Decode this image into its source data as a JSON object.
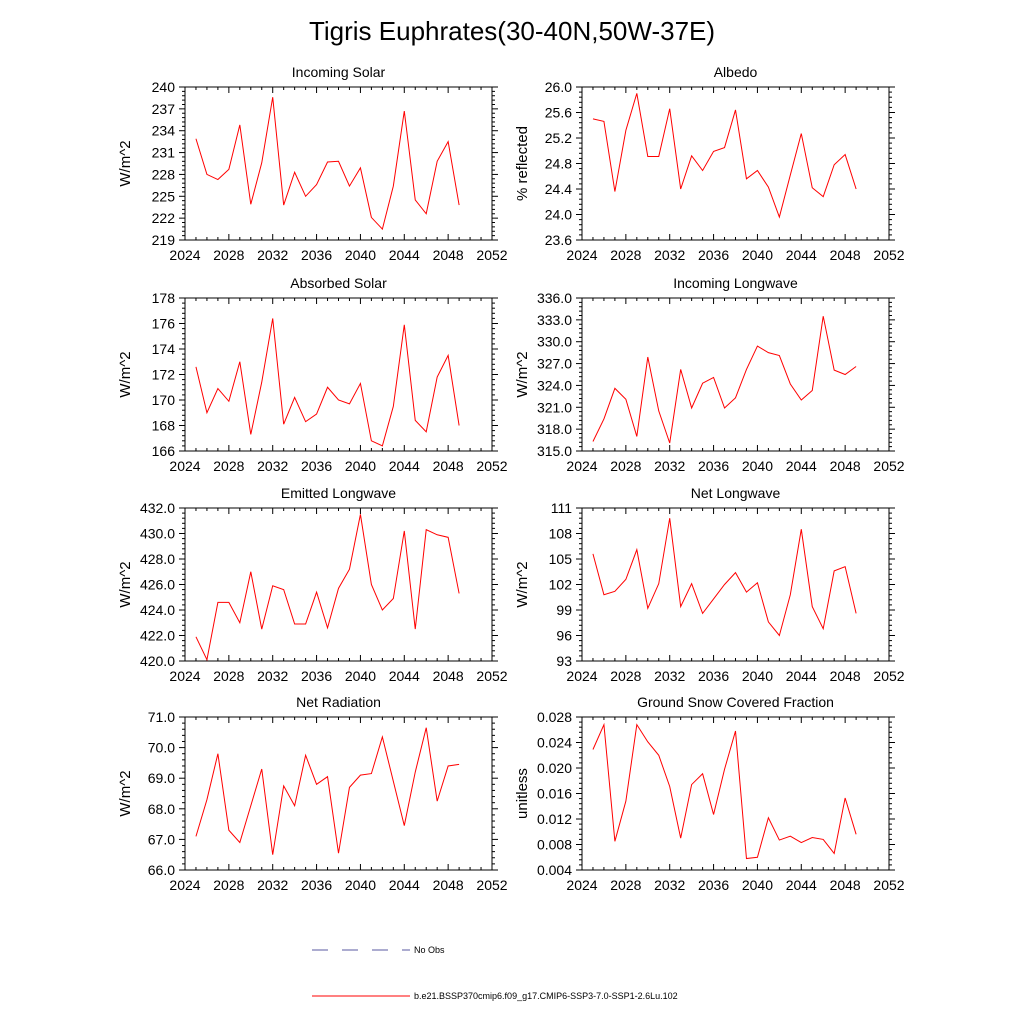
{
  "title": "Tigris Euphrates(30-40N,50W-37E)",
  "colors": {
    "series": "#ff0000",
    "obs": "#5a5aa0",
    "axis": "#000000"
  },
  "legend": {
    "obs_label": "No Obs",
    "model_label": "b.e21.BSSP370cmip6.f09_g17.CMIP6-SSP3-7.0-SSP1-2.6Lu.102"
  },
  "chart_data": [
    {
      "type": "line",
      "title": "Incoming Solar",
      "ylabel": "W/m^2",
      "xlim": [
        2024,
        2052
      ],
      "ylim": [
        219,
        240
      ],
      "xticks": [
        "2024",
        "2028",
        "2032",
        "2036",
        "2040",
        "2044",
        "2048",
        "2052"
      ],
      "yticks": [
        "219",
        "222",
        "225",
        "228",
        "231",
        "234",
        "237",
        "240"
      ],
      "x": [
        2025,
        2026,
        2027,
        2028,
        2029,
        2030,
        2031,
        2032,
        2033,
        2034,
        2035,
        2036,
        2037,
        2038,
        2039,
        2040,
        2041,
        2042,
        2043,
        2044,
        2045,
        2046,
        2047,
        2048,
        2049
      ],
      "series": [
        {
          "values": [
            232.9,
            228.0,
            227.3,
            228.7,
            234.8,
            223.9,
            229.6,
            238.6,
            223.8,
            228.3,
            225.0,
            226.6,
            229.7,
            229.8,
            226.4,
            228.9,
            222.1,
            220.5,
            226.4,
            236.7,
            224.5,
            222.6,
            229.8,
            232.5,
            223.8
          ]
        }
      ]
    },
    {
      "type": "line",
      "title": "Albedo",
      "ylabel": "% reflected",
      "xlim": [
        2024,
        2052
      ],
      "ylim": [
        23.6,
        26.0
      ],
      "xticks": [
        "2024",
        "2028",
        "2032",
        "2036",
        "2040",
        "2044",
        "2048",
        "2052"
      ],
      "yticks": [
        "23.6",
        "24.0",
        "24.4",
        "24.8",
        "25.2",
        "25.6",
        "26.0"
      ],
      "x": [
        2025,
        2026,
        2027,
        2028,
        2029,
        2030,
        2031,
        2032,
        2033,
        2034,
        2035,
        2036,
        2037,
        2038,
        2039,
        2040,
        2041,
        2042,
        2043,
        2044,
        2045,
        2046,
        2047,
        2048,
        2049
      ],
      "series": [
        {
          "values": [
            25.5,
            25.46,
            24.36,
            25.32,
            25.9,
            24.91,
            24.91,
            25.66,
            24.4,
            24.92,
            24.69,
            24.99,
            25.05,
            25.64,
            24.56,
            24.69,
            24.43,
            23.96,
            24.62,
            25.27,
            24.42,
            24.28,
            24.78,
            24.94,
            24.4
          ]
        }
      ]
    },
    {
      "type": "line",
      "title": "Absorbed Solar",
      "ylabel": "W/m^2",
      "xlim": [
        2024,
        2052
      ],
      "ylim": [
        166,
        178
      ],
      "xticks": [
        "2024",
        "2028",
        "2032",
        "2036",
        "2040",
        "2044",
        "2048",
        "2052"
      ],
      "yticks": [
        "166",
        "168",
        "170",
        "172",
        "174",
        "176",
        "178"
      ],
      "x": [
        2025,
        2026,
        2027,
        2028,
        2029,
        2030,
        2031,
        2032,
        2033,
        2034,
        2035,
        2036,
        2037,
        2038,
        2039,
        2040,
        2041,
        2042,
        2043,
        2044,
        2045,
        2046,
        2047,
        2048,
        2049
      ],
      "series": [
        {
          "values": [
            172.6,
            169.0,
            170.9,
            169.9,
            173.0,
            167.3,
            171.4,
            176.4,
            168.1,
            170.2,
            168.3,
            168.9,
            171.0,
            170.0,
            169.7,
            171.3,
            166.8,
            166.4,
            169.5,
            175.9,
            168.4,
            167.5,
            171.8,
            173.5,
            168.0
          ]
        }
      ]
    },
    {
      "type": "line",
      "title": "Incoming Longwave",
      "ylabel": "W/m^2",
      "xlim": [
        2024,
        2052
      ],
      "ylim": [
        315.0,
        336.0
      ],
      "xticks": [
        "2024",
        "2028",
        "2032",
        "2036",
        "2040",
        "2044",
        "2048",
        "2052"
      ],
      "yticks": [
        "315.0",
        "318.0",
        "321.0",
        "324.0",
        "327.0",
        "330.0",
        "333.0",
        "336.0"
      ],
      "x": [
        2025,
        2026,
        2027,
        2028,
        2029,
        2030,
        2031,
        2032,
        2033,
        2034,
        2035,
        2036,
        2037,
        2038,
        2039,
        2040,
        2041,
        2042,
        2043,
        2044,
        2045,
        2046,
        2047,
        2048,
        2049
      ],
      "series": [
        {
          "values": [
            316.3,
            319.4,
            323.6,
            322.1,
            317.0,
            327.9,
            320.5,
            316.1,
            326.2,
            320.9,
            324.3,
            325.1,
            320.9,
            322.3,
            326.2,
            329.4,
            328.5,
            328.1,
            324.2,
            322.0,
            323.3,
            333.5,
            326.1,
            325.5,
            326.6
          ]
        }
      ]
    },
    {
      "type": "line",
      "title": "Emitted Longwave",
      "ylabel": "W/m^2",
      "xlim": [
        2024,
        2052
      ],
      "ylim": [
        420.0,
        432.0
      ],
      "xticks": [
        "2024",
        "2028",
        "2032",
        "2036",
        "2040",
        "2044",
        "2048",
        "2052"
      ],
      "yticks": [
        "420.0",
        "422.0",
        "424.0",
        "426.0",
        "428.0",
        "430.0",
        "432.0"
      ],
      "x": [
        2025,
        2026,
        2027,
        2028,
        2029,
        2030,
        2031,
        2032,
        2033,
        2034,
        2035,
        2036,
        2037,
        2038,
        2039,
        2040,
        2041,
        2042,
        2043,
        2044,
        2045,
        2046,
        2047,
        2048,
        2049
      ],
      "series": [
        {
          "values": [
            421.9,
            420.1,
            424.6,
            424.6,
            423.0,
            427.0,
            422.5,
            425.9,
            425.6,
            422.9,
            422.9,
            425.4,
            422.6,
            425.7,
            427.2,
            431.5,
            426.0,
            424.0,
            424.9,
            430.2,
            422.5,
            430.3,
            429.9,
            429.7,
            425.3
          ]
        }
      ]
    },
    {
      "type": "line",
      "title": "Net Longwave",
      "ylabel": "W/m^2",
      "xlim": [
        2024,
        2052
      ],
      "ylim": [
        93,
        111
      ],
      "xticks": [
        "2024",
        "2028",
        "2032",
        "2036",
        "2040",
        "2044",
        "2048",
        "2052"
      ],
      "yticks": [
        "93",
        "96",
        "99",
        "102",
        "105",
        "108",
        "111"
      ],
      "x": [
        2025,
        2026,
        2027,
        2028,
        2029,
        2030,
        2031,
        2032,
        2033,
        2034,
        2035,
        2036,
        2037,
        2038,
        2039,
        2040,
        2041,
        2042,
        2043,
        2044,
        2045,
        2046,
        2047,
        2048,
        2049
      ],
      "series": [
        {
          "values": [
            105.6,
            100.8,
            101.2,
            102.6,
            106.1,
            99.2,
            102.1,
            109.8,
            99.4,
            102.1,
            98.6,
            100.3,
            102.0,
            103.4,
            101.1,
            102.2,
            97.6,
            96.0,
            100.8,
            108.5,
            99.4,
            96.8,
            103.6,
            104.1,
            98.6
          ]
        }
      ]
    },
    {
      "type": "line",
      "title": "Net Radiation",
      "ylabel": "W/m^2",
      "xlim": [
        2024,
        2052
      ],
      "ylim": [
        66.0,
        71.0
      ],
      "xticks": [
        "2024",
        "2028",
        "2032",
        "2036",
        "2040",
        "2044",
        "2048",
        "2052"
      ],
      "yticks": [
        "66.0",
        "67.0",
        "68.0",
        "69.0",
        "70.0",
        "71.0"
      ],
      "x": [
        2025,
        2026,
        2027,
        2028,
        2029,
        2030,
        2031,
        2032,
        2033,
        2034,
        2035,
        2036,
        2037,
        2038,
        2039,
        2040,
        2041,
        2042,
        2043,
        2044,
        2045,
        2046,
        2047,
        2048,
        2049
      ],
      "series": [
        {
          "values": [
            67.1,
            68.3,
            69.8,
            67.3,
            66.9,
            68.1,
            69.3,
            66.5,
            68.75,
            68.1,
            69.75,
            68.8,
            69.05,
            66.55,
            68.7,
            69.1,
            69.15,
            70.35,
            68.9,
            67.45,
            69.2,
            70.65,
            68.25,
            69.4,
            69.45
          ]
        }
      ]
    },
    {
      "type": "line",
      "title": "Ground Snow Covered Fraction",
      "ylabel": "unitless",
      "xlim": [
        2024,
        2052
      ],
      "ylim": [
        0.004,
        0.028
      ],
      "xticks": [
        "2024",
        "2028",
        "2032",
        "2036",
        "2040",
        "2044",
        "2048",
        "2052"
      ],
      "yticks": [
        "0.004",
        "0.008",
        "0.012",
        "0.016",
        "0.020",
        "0.024",
        "0.028"
      ],
      "x": [
        2025,
        2026,
        2027,
        2028,
        2029,
        2030,
        2031,
        2032,
        2033,
        2034,
        2035,
        2036,
        2037,
        2038,
        2039,
        2040,
        2041,
        2042,
        2043,
        2044,
        2045,
        2046,
        2047,
        2048,
        2049
      ],
      "series": [
        {
          "values": [
            0.0229,
            0.0268,
            0.0085,
            0.0148,
            0.0268,
            0.0241,
            0.022,
            0.0171,
            0.009,
            0.0174,
            0.0191,
            0.0127,
            0.0198,
            0.0258,
            0.0058,
            0.006,
            0.0122,
            0.0087,
            0.0093,
            0.0083,
            0.0091,
            0.0088,
            0.0066,
            0.0153,
            0.0096
          ]
        }
      ]
    }
  ]
}
